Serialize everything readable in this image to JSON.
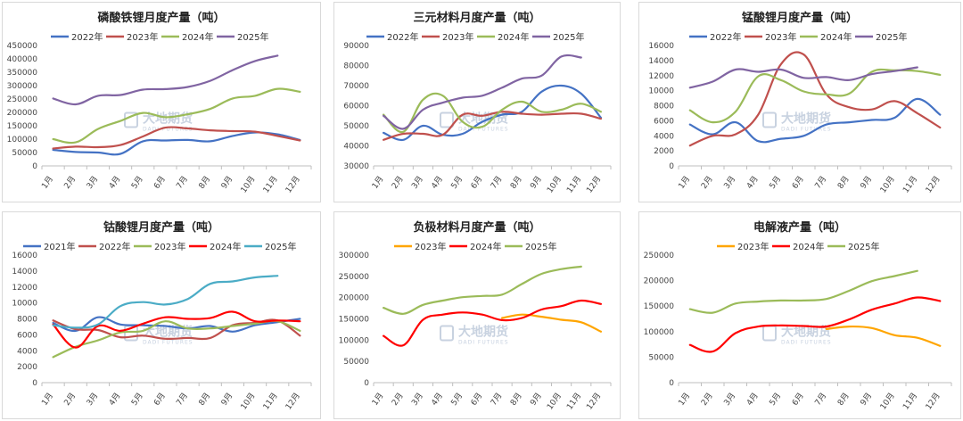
{
  "watermark": {
    "cn": "大地期货",
    "en": "DADI FUTURES"
  },
  "chart_data": [
    {
      "type": "line",
      "title": "磷酸铁锂月度产量（吨）",
      "categories": [
        "1月",
        "2月",
        "3月",
        "4月",
        "5月",
        "6月",
        "7月",
        "8月",
        "9月",
        "10月",
        "11月",
        "12月"
      ],
      "ylim": [
        0,
        450000
      ],
      "yticks": [
        0,
        50000,
        100000,
        150000,
        200000,
        250000,
        300000,
        350000,
        400000,
        450000
      ],
      "legend": "top",
      "grid": false,
      "series": [
        {
          "name": "2022年",
          "color": "#4472c4",
          "values": [
            60000,
            52000,
            50000,
            45000,
            92000,
            95000,
            97000,
            92000,
            112000,
            125000,
            118000,
            97000
          ]
        },
        {
          "name": "2023年",
          "color": "#c0504d",
          "values": [
            65000,
            72000,
            70000,
            78000,
            110000,
            143000,
            140000,
            133000,
            130000,
            128000,
            112000,
            95000
          ]
        },
        {
          "name": "2024年",
          "color": "#9bbb59",
          "values": [
            100000,
            88000,
            138000,
            168000,
            198000,
            182000,
            193000,
            213000,
            252000,
            262000,
            288000,
            277000
          ]
        },
        {
          "name": "2025年",
          "color": "#8064a2",
          "values": [
            252000,
            230000,
            262000,
            265000,
            285000,
            287000,
            295000,
            318000,
            358000,
            392000,
            412000,
            null
          ]
        }
      ]
    },
    {
      "type": "line",
      "title": "三元材料月度产量（吨）",
      "categories": [
        "1月",
        "2月",
        "3月",
        "4月",
        "5月",
        "6月",
        "7月",
        "8月",
        "9月",
        "10月",
        "11月",
        "12月"
      ],
      "ylim": [
        30000,
        90000
      ],
      "yticks": [
        30000,
        40000,
        50000,
        60000,
        70000,
        80000,
        90000
      ],
      "legend": "top",
      "grid": false,
      "series": [
        {
          "name": "2022年",
          "color": "#4472c4",
          "values": [
            46500,
            43000,
            50000,
            45500,
            46000,
            52000,
            55500,
            57000,
            67000,
            70000,
            66000,
            54000
          ]
        },
        {
          "name": "2023年",
          "color": "#c0504d",
          "values": [
            43000,
            46000,
            46000,
            45500,
            55500,
            55000,
            57000,
            56000,
            55500,
            56000,
            56000,
            53500
          ]
        },
        {
          "name": "2024年",
          "color": "#9bbb59",
          "values": [
            55500,
            47000,
            63000,
            65000,
            52000,
            49500,
            58000,
            62000,
            57000,
            58000,
            61000,
            57000
          ]
        },
        {
          "name": "2025年",
          "color": "#8064a2",
          "values": [
            55000,
            48500,
            58000,
            61500,
            64000,
            65000,
            69000,
            73500,
            75000,
            84500,
            84000,
            null
          ]
        }
      ]
    },
    {
      "type": "line",
      "title": "锰酸锂月度产量（吨）",
      "categories": [
        "1月",
        "2月",
        "3月",
        "4月",
        "5月",
        "6月",
        "7月",
        "8月",
        "9月",
        "10月",
        "11月",
        "12月"
      ],
      "ylim": [
        0,
        16000
      ],
      "yticks": [
        0,
        2000,
        4000,
        6000,
        8000,
        10000,
        12000,
        14000,
        16000
      ],
      "legend": "top",
      "grid": false,
      "series": [
        {
          "name": "2022年",
          "color": "#4472c4",
          "values": [
            5500,
            4200,
            5800,
            3300,
            3600,
            4000,
            5500,
            5800,
            6100,
            6400,
            8900,
            6800
          ]
        },
        {
          "name": "2023年",
          "color": "#c0504d",
          "values": [
            2700,
            4000,
            4200,
            6800,
            13500,
            14800,
            9500,
            7800,
            7500,
            8600,
            7000,
            5100
          ]
        },
        {
          "name": "2024年",
          "color": "#9bbb59",
          "values": [
            7400,
            5800,
            7200,
            11900,
            11400,
            9900,
            9500,
            9600,
            12500,
            12700,
            12600,
            12100
          ]
        },
        {
          "name": "2025年",
          "color": "#8064a2",
          "values": [
            10400,
            11200,
            12800,
            12500,
            12800,
            11700,
            11800,
            11400,
            12200,
            12600,
            13100,
            null
          ]
        }
      ]
    },
    {
      "type": "line",
      "title": "钴酸锂月度产量（吨）",
      "categories": [
        "1月",
        "2月",
        "3月",
        "4月",
        "5月",
        "6月",
        "7月",
        "8月",
        "9月",
        "10月",
        "11月",
        "12月"
      ],
      "ylim": [
        0,
        16000
      ],
      "yticks": [
        0,
        2000,
        4000,
        6000,
        8000,
        10000,
        12000,
        14000,
        16000
      ],
      "legend": "top",
      "grid": false,
      "series": [
        {
          "name": "2021年",
          "color": "#4472c4",
          "values": [
            7500,
            6500,
            8200,
            7300,
            7200,
            7100,
            6800,
            7100,
            6400,
            7200,
            7600,
            8000
          ]
        },
        {
          "name": "2022年",
          "color": "#c0504d",
          "values": [
            7800,
            6700,
            6600,
            5700,
            5900,
            5500,
            5600,
            5600,
            7200,
            7500,
            7800,
            5900
          ]
        },
        {
          "name": "2023年",
          "color": "#9bbb59",
          "values": [
            3200,
            4500,
            5300,
            6300,
            6500,
            7700,
            6800,
            6800,
            7100,
            7400,
            7700,
            6500
          ]
        },
        {
          "name": "2024年",
          "color": "#ff0000",
          "values": [
            7300,
            4400,
            7100,
            6500,
            7400,
            8200,
            8000,
            8100,
            8900,
            7700,
            7800,
            7700
          ]
        },
        {
          "name": "2025年",
          "color": "#4bacc6",
          "values": [
            7200,
            6900,
            7300,
            9600,
            10100,
            9800,
            10500,
            12400,
            12700,
            13200,
            13400,
            null
          ]
        }
      ]
    },
    {
      "type": "line",
      "title": "负极材料月度产量（吨）",
      "categories": [
        "1月",
        "2月",
        "3月",
        "4月",
        "5月",
        "6月",
        "7月",
        "8月",
        "9月",
        "10月",
        "11月",
        "12月"
      ],
      "ylim": [
        0,
        300000
      ],
      "yticks": [
        0,
        50000,
        100000,
        150000,
        200000,
        250000,
        300000
      ],
      "legend": "top",
      "grid": false,
      "series": [
        {
          "name": "2023年",
          "color": "#ffa500",
          "values": [
            null,
            null,
            null,
            null,
            null,
            null,
            152000,
            160000,
            155000,
            148000,
            142000,
            120000
          ]
        },
        {
          "name": "2024年",
          "color": "#ff0000",
          "values": [
            110000,
            88000,
            148000,
            160000,
            165000,
            160000,
            147000,
            152000,
            172000,
            180000,
            193000,
            185000
          ]
        },
        {
          "name": "2025年",
          "color": "#9bbb59",
          "values": [
            176000,
            162000,
            183000,
            193000,
            201000,
            204000,
            207000,
            232000,
            256000,
            267000,
            273000,
            null
          ]
        }
      ]
    },
    {
      "type": "line",
      "title": "电解液产量（吨）",
      "categories": [
        "1月",
        "2月",
        "3月",
        "4月",
        "5月",
        "6月",
        "7月",
        "8月",
        "9月",
        "10月",
        "11月",
        "12月"
      ],
      "ylim": [
        0,
        250000
      ],
      "yticks": [
        0,
        50000,
        100000,
        150000,
        200000,
        250000
      ],
      "legend": "top",
      "grid": false,
      "series": [
        {
          "name": "2023年",
          "color": "#ffa500",
          "values": [
            null,
            null,
            null,
            null,
            null,
            null,
            105000,
            110000,
            107000,
            93000,
            88000,
            72000
          ]
        },
        {
          "name": "2024年",
          "color": "#ff0000",
          "values": [
            74000,
            61000,
            97000,
            110000,
            112000,
            111000,
            110000,
            124000,
            143000,
            155000,
            167000,
            160000
          ]
        },
        {
          "name": "2025年",
          "color": "#9bbb59",
          "values": [
            144000,
            137000,
            155000,
            159000,
            161000,
            161000,
            164000,
            180000,
            199000,
            209000,
            219000,
            null
          ]
        }
      ]
    }
  ]
}
